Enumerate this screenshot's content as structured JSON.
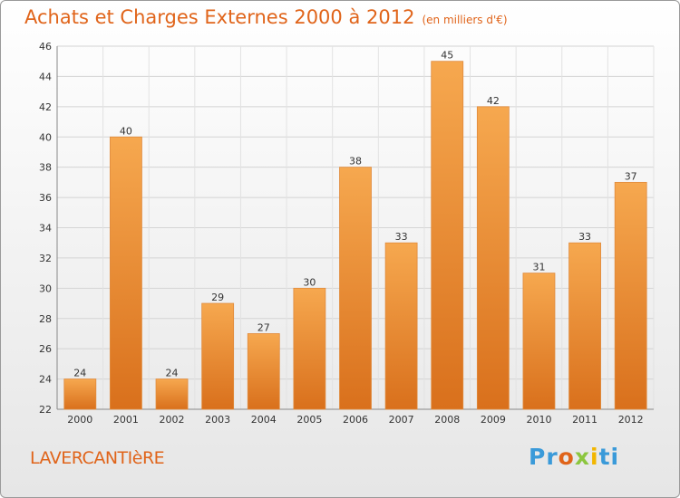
{
  "chart_data": {
    "type": "bar",
    "title": "Achats et Charges Externes 2000 à 2012",
    "subtitle": "(en milliers d'€)",
    "categories": [
      "2000",
      "2001",
      "2002",
      "2003",
      "2004",
      "2005",
      "2006",
      "2007",
      "2008",
      "2009",
      "2010",
      "2011",
      "2012"
    ],
    "values": [
      24,
      40,
      24,
      29,
      27,
      30,
      38,
      33,
      45,
      42,
      31,
      33,
      37
    ],
    "ylim": [
      22,
      46
    ],
    "yticks": [
      22,
      24,
      26,
      28,
      30,
      32,
      34,
      36,
      38,
      40,
      42,
      44,
      46
    ],
    "grid": true,
    "bar_color_top": "#f6a84f",
    "bar_color_bottom": "#d9701c"
  },
  "footer": {
    "commune": "LAVERCANTIèRE",
    "logo": [
      "Pr",
      "o",
      "x",
      "i",
      "ti"
    ]
  }
}
